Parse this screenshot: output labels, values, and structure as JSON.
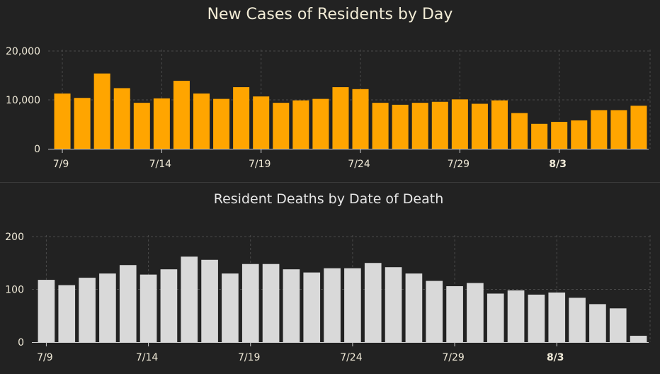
{
  "chart_data": [
    {
      "type": "bar",
      "title": "New Cases of Residents by Day",
      "ylim": [
        0,
        20000
      ],
      "yticks": [
        "0",
        "10,000",
        "20,000"
      ],
      "ytick_values": [
        0,
        10000,
        20000
      ],
      "grid": true,
      "color": "#FFA500",
      "xtick_labels": [
        {
          "label": "7/9",
          "index": 0,
          "bold": false
        },
        {
          "label": "7/14",
          "index": 5,
          "bold": false
        },
        {
          "label": "7/19",
          "index": 10,
          "bold": false
        },
        {
          "label": "7/24",
          "index": 15,
          "bold": false
        },
        {
          "label": "7/29",
          "index": 20,
          "bold": false
        },
        {
          "label": "8/3",
          "index": 25,
          "bold": true
        }
      ],
      "values": [
        11300,
        10400,
        15400,
        12400,
        9400,
        10300,
        13900,
        11300,
        10200,
        12600,
        10700,
        9400,
        9900,
        10200,
        12600,
        12200,
        9400,
        9000,
        9400,
        9600,
        10100,
        9200,
        9900,
        7300,
        5100,
        5500,
        5800,
        7900,
        7900,
        8800
      ]
    },
    {
      "type": "bar",
      "title": "Resident Deaths by Date of Death",
      "ylim": [
        0,
        200
      ],
      "yticks": [
        "0",
        "100",
        "200"
      ],
      "ytick_values": [
        0,
        100,
        200
      ],
      "grid": true,
      "color": "#D9D9D9",
      "xtick_labels": [
        {
          "label": "7/9",
          "index": 0,
          "bold": false
        },
        {
          "label": "7/14",
          "index": 5,
          "bold": false
        },
        {
          "label": "7/19",
          "index": 10,
          "bold": false
        },
        {
          "label": "7/24",
          "index": 15,
          "bold": false
        },
        {
          "label": "7/29",
          "index": 20,
          "bold": false
        },
        {
          "label": "8/3",
          "index": 25,
          "bold": true
        }
      ],
      "values": [
        118,
        108,
        122,
        130,
        146,
        128,
        138,
        162,
        156,
        130,
        148,
        148,
        138,
        132,
        140,
        140,
        150,
        142,
        130,
        116,
        106,
        112,
        92,
        98,
        90,
        94,
        84,
        72,
        64,
        12
      ]
    }
  ]
}
